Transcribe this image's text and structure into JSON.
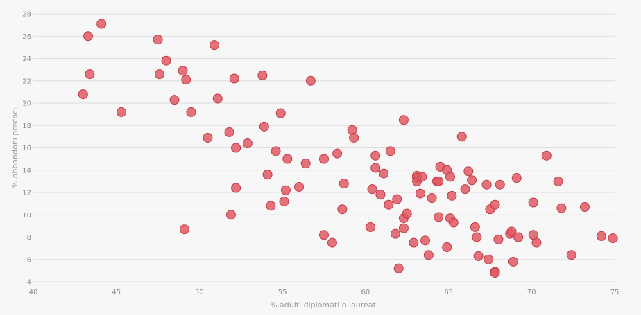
{
  "chart_data": {
    "type": "scatter",
    "xlabel": "% adulti diplomati o laureati",
    "ylabel": "% abbandoni precoci",
    "xlim": [
      40,
      75
    ],
    "ylim": [
      4,
      28
    ],
    "xticks": [
      40,
      45,
      50,
      55,
      60,
      65,
      70,
      75
    ],
    "yticks": [
      4,
      6,
      8,
      10,
      12,
      14,
      16,
      18,
      20,
      22,
      24,
      26,
      28
    ],
    "grid": "horizontal",
    "marker_color": "#e05a64",
    "marker_edge_color": "#c23a45",
    "points": [
      [
        43.0,
        20.8
      ],
      [
        43.3,
        26.0
      ],
      [
        43.4,
        22.6
      ],
      [
        44.1,
        27.1
      ],
      [
        45.3,
        19.2
      ],
      [
        47.5,
        25.7
      ],
      [
        47.6,
        22.6
      ],
      [
        48.0,
        23.8
      ],
      [
        48.5,
        20.3
      ],
      [
        49.0,
        22.9
      ],
      [
        49.2,
        22.1
      ],
      [
        49.5,
        19.2
      ],
      [
        49.1,
        8.7
      ],
      [
        50.5,
        16.9
      ],
      [
        50.9,
        25.2
      ],
      [
        51.1,
        20.4
      ],
      [
        51.8,
        17.4
      ],
      [
        51.9,
        10.0
      ],
      [
        52.1,
        22.2
      ],
      [
        52.2,
        16.0
      ],
      [
        52.2,
        12.4
      ],
      [
        52.9,
        16.4
      ],
      [
        53.8,
        22.5
      ],
      [
        53.9,
        17.9
      ],
      [
        54.1,
        13.6
      ],
      [
        54.3,
        10.8
      ],
      [
        54.6,
        15.7
      ],
      [
        54.9,
        19.1
      ],
      [
        55.1,
        11.2
      ],
      [
        55.2,
        12.2
      ],
      [
        55.3,
        15.0
      ],
      [
        56.0,
        12.5
      ],
      [
        56.4,
        14.6
      ],
      [
        56.7,
        22.0
      ],
      [
        57.5,
        15.0
      ],
      [
        57.5,
        8.2
      ],
      [
        58.0,
        7.5
      ],
      [
        58.3,
        15.5
      ],
      [
        58.6,
        10.5
      ],
      [
        58.7,
        12.8
      ],
      [
        59.2,
        17.6
      ],
      [
        59.3,
        16.9
      ],
      [
        60.3,
        8.9
      ],
      [
        60.4,
        12.3
      ],
      [
        60.6,
        15.3
      ],
      [
        60.6,
        14.2
      ],
      [
        60.9,
        11.8
      ],
      [
        61.1,
        13.7
      ],
      [
        61.4,
        10.9
      ],
      [
        61.5,
        15.7
      ],
      [
        61.8,
        8.3
      ],
      [
        61.9,
        11.4
      ],
      [
        62.0,
        5.2
      ],
      [
        62.3,
        18.5
      ],
      [
        62.3,
        9.7
      ],
      [
        62.3,
        8.8
      ],
      [
        62.5,
        10.1
      ],
      [
        62.9,
        7.5
      ],
      [
        63.1,
        13.5
      ],
      [
        63.1,
        13.3
      ],
      [
        63.1,
        13.0
      ],
      [
        63.3,
        11.9
      ],
      [
        63.4,
        13.4
      ],
      [
        63.6,
        7.7
      ],
      [
        63.8,
        6.4
      ],
      [
        64.0,
        11.5
      ],
      [
        64.3,
        13.0
      ],
      [
        64.4,
        13.0
      ],
      [
        64.4,
        9.8
      ],
      [
        64.5,
        14.3
      ],
      [
        64.9,
        14.0
      ],
      [
        64.9,
        7.1
      ],
      [
        65.1,
        13.4
      ],
      [
        65.1,
        9.7
      ],
      [
        65.2,
        11.7
      ],
      [
        65.3,
        9.3
      ],
      [
        65.8,
        17.0
      ],
      [
        66.0,
        12.3
      ],
      [
        66.2,
        13.9
      ],
      [
        66.4,
        13.1
      ],
      [
        66.6,
        8.9
      ],
      [
        66.7,
        8.0
      ],
      [
        66.8,
        6.3
      ],
      [
        67.3,
        12.7
      ],
      [
        67.4,
        6.0
      ],
      [
        67.5,
        10.5
      ],
      [
        67.8,
        10.9
      ],
      [
        67.8,
        4.9
      ],
      [
        67.8,
        4.8
      ],
      [
        68.0,
        7.8
      ],
      [
        68.1,
        12.7
      ],
      [
        68.7,
        8.3
      ],
      [
        68.8,
        8.5
      ],
      [
        68.9,
        5.8
      ],
      [
        69.1,
        13.3
      ],
      [
        69.2,
        8.0
      ],
      [
        70.1,
        11.1
      ],
      [
        70.1,
        8.2
      ],
      [
        70.3,
        7.5
      ],
      [
        70.9,
        15.3
      ],
      [
        71.6,
        13.0
      ],
      [
        71.8,
        10.6
      ],
      [
        72.4,
        6.4
      ],
      [
        73.2,
        10.7
      ],
      [
        74.2,
        8.1
      ],
      [
        74.9,
        7.9
      ]
    ]
  }
}
